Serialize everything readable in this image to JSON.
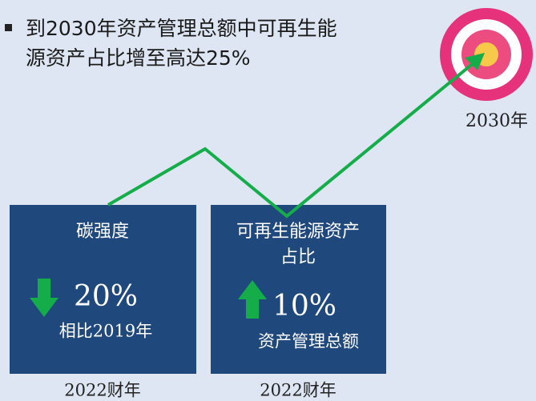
{
  "bullet": {
    "lines": [
      "到2030年资产管理总额中可再生能",
      "源资产占比增至高达25%"
    ]
  },
  "target": {
    "label": "2030年"
  },
  "cards": [
    {
      "title": [
        "碳强度"
      ],
      "value": "20%",
      "subtitle": "相比2019年",
      "footer": "2022财年"
    },
    {
      "title": [
        "可再生能源资产",
        "占比"
      ],
      "value": "10%",
      "subtitle": "资产管理总额",
      "footer": "2022财年"
    }
  ]
}
